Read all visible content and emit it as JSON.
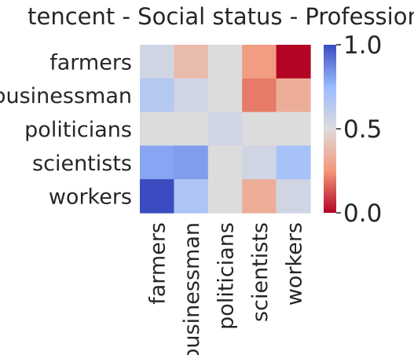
{
  "chart_data": {
    "type": "heatmap",
    "title": "tencent - Social status - Profession",
    "rows": [
      "farmers",
      "businessman",
      "politicians",
      "scientists",
      "workers"
    ],
    "columns": [
      "farmers",
      "businessman",
      "politicians",
      "scientists",
      "workers"
    ],
    "values": [
      [
        0.55,
        0.38,
        0.5,
        0.27,
        0.0
      ],
      [
        0.65,
        0.55,
        0.5,
        0.2,
        0.33
      ],
      [
        0.5,
        0.5,
        0.55,
        0.5,
        0.5
      ],
      [
        0.8,
        0.82,
        0.5,
        0.55,
        0.7
      ],
      [
        1.0,
        0.68,
        0.5,
        0.33,
        0.55
      ]
    ],
    "colormap": "coolwarm",
    "vmin": 0.0,
    "vmax": 1.0,
    "colorbar": {
      "ticks": [
        0.0,
        0.5,
        1.0
      ],
      "tick_labels": [
        "0.0",
        "0.5",
        "1.0"
      ]
    },
    "grid": false,
    "xlabel": "",
    "ylabel": ""
  }
}
